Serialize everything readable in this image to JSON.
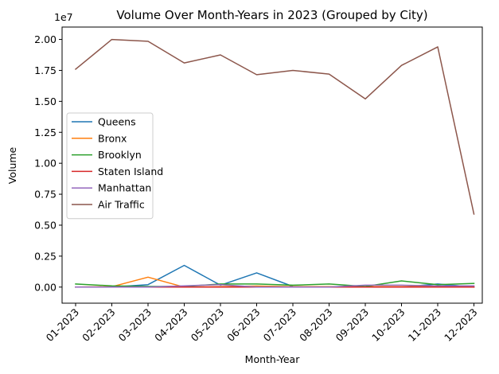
{
  "chart_data": {
    "type": "line",
    "title": "Volume Over Month-Years in 2023 (Grouped by City)",
    "xlabel": "Month-Year",
    "ylabel": "Volume",
    "y_multiplier_label": "1e7",
    "categories": [
      "01-2023",
      "02-2023",
      "03-2023",
      "04-2023",
      "05-2023",
      "06-2023",
      "07-2023",
      "08-2023",
      "09-2023",
      "10-2023",
      "11-2023",
      "12-2023"
    ],
    "ylim": [
      -1300000,
      21000000
    ],
    "yticks": [
      {
        "value": 0,
        "label": "0.00"
      },
      {
        "value": 2500000,
        "label": "0.25"
      },
      {
        "value": 5000000,
        "label": "0.50"
      },
      {
        "value": 7500000,
        "label": "0.75"
      },
      {
        "value": 10000000,
        "label": "1.00"
      },
      {
        "value": 12500000,
        "label": "1.25"
      },
      {
        "value": 15000000,
        "label": "1.50"
      },
      {
        "value": 17500000,
        "label": "1.75"
      },
      {
        "value": 20000000,
        "label": "2.00"
      }
    ],
    "grid": false,
    "legend_position": "center-left",
    "series": [
      {
        "name": "Queens",
        "color": "#1f77b4",
        "values": [
          0,
          0,
          200000,
          1750000,
          150000,
          1150000,
          50000,
          0,
          0,
          0,
          250000,
          0
        ]
      },
      {
        "name": "Bronx",
        "color": "#ff7f0e",
        "values": [
          0,
          30000,
          800000,
          0,
          30000,
          80000,
          30000,
          30000,
          30000,
          30000,
          30000,
          30000
        ]
      },
      {
        "name": "Brooklyn",
        "color": "#2ca02c",
        "values": [
          250000,
          100000,
          50000,
          50000,
          250000,
          250000,
          150000,
          250000,
          50000,
          500000,
          200000,
          300000
        ]
      },
      {
        "name": "Staten Island",
        "color": "#d62728",
        "values": [
          0,
          0,
          0,
          0,
          0,
          0,
          0,
          0,
          0,
          0,
          0,
          0
        ]
      },
      {
        "name": "Manhattan",
        "color": "#9467bd",
        "values": [
          0,
          0,
          0,
          100000,
          200000,
          0,
          0,
          0,
          150000,
          150000,
          100000,
          100000
        ]
      },
      {
        "name": "Air Traffic",
        "color": "#8c564b",
        "values": [
          17600000,
          20000000,
          19850000,
          18100000,
          18750000,
          17150000,
          17500000,
          17200000,
          15200000,
          17900000,
          19400000,
          5900000
        ]
      }
    ]
  }
}
